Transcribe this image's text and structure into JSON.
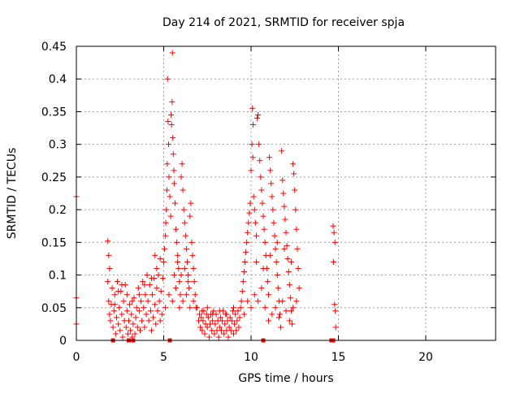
{
  "chart_data": {
    "type": "scatter",
    "title": "Day 214 of 2021, SRMTID for receiver spja",
    "xlabel": "GPS time / hours",
    "ylabel": "SRMTID / TECUs",
    "xlim": [
      0,
      24
    ],
    "ylim": [
      0,
      0.45
    ],
    "x_ticks": [
      0,
      5,
      10,
      15,
      20
    ],
    "x_tick_labels": [
      "0",
      "5",
      "10",
      "15",
      "20"
    ],
    "y_ticks": [
      0,
      0.05,
      0.1,
      0.15,
      0.2,
      0.25,
      0.3,
      0.35,
      0.4,
      0.45
    ],
    "y_tick_labels": [
      "0",
      "0.05",
      "0.1",
      "0.15",
      "0.2",
      "0.25",
      "0.3",
      "0.35",
      "0.4",
      "0.45"
    ],
    "grid": true,
    "legend": "none",
    "marker": "plus",
    "series": [
      {
        "color": "#ff0000",
        "points": [
          [
            0.0,
            0.22
          ],
          [
            0.0,
            0.065
          ],
          [
            0.0,
            0.025
          ],
          [
            1.8,
            0.152
          ],
          [
            1.85,
            0.13
          ],
          [
            1.9,
            0.11
          ],
          [
            1.8,
            0.09
          ],
          [
            1.85,
            0.06
          ],
          [
            1.9,
            0.04
          ],
          [
            1.95,
            0.03
          ],
          [
            2.0,
            0.055
          ],
          [
            2.05,
            0.08
          ],
          [
            2.1,
            0.02
          ],
          [
            2.15,
            0.045
          ],
          [
            2.2,
            0.07
          ],
          [
            2.25,
            0.01
          ],
          [
            2.3,
            0.035
          ],
          [
            2.35,
            0.09
          ],
          [
            2.4,
            0.025
          ],
          [
            2.45,
            0.05
          ],
          [
            2.5,
            0.015
          ],
          [
            2.55,
            0.075
          ],
          [
            2.6,
            0.04
          ],
          [
            2.65,
            0.005
          ],
          [
            2.7,
            0.06
          ],
          [
            2.75,
            0.03
          ],
          [
            2.8,
            0.085
          ],
          [
            2.85,
            0.02
          ],
          [
            2.9,
            0.045
          ],
          [
            2.95,
            0.01
          ],
          [
            3.0,
            0.03
          ],
          [
            3.05,
            0.055
          ],
          [
            3.1,
            0.015
          ],
          [
            3.15,
            0.04
          ],
          [
            3.2,
            0.005
          ],
          [
            3.25,
            0.025
          ],
          [
            3.3,
            0.065
          ],
          [
            3.35,
            0.01
          ],
          [
            3.4,
            0.035
          ],
          [
            3.45,
            0.05
          ],
          [
            3.5,
            0.02
          ],
          [
            3.55,
            0.08
          ],
          [
            3.6,
            0.045
          ],
          [
            3.65,
            0.015
          ],
          [
            3.7,
            0.06
          ],
          [
            3.75,
            0.03
          ],
          [
            3.8,
            0.09
          ],
          [
            3.85,
            0.05
          ],
          [
            3.9,
            0.02
          ],
          [
            3.95,
            0.07
          ],
          [
            4.0,
            0.04
          ],
          [
            4.05,
            0.1
          ],
          [
            4.1,
            0.06
          ],
          [
            4.15,
            0.03
          ],
          [
            4.2,
            0.085
          ],
          [
            4.25,
            0.045
          ],
          [
            4.3,
            0.015
          ],
          [
            4.35,
            0.07
          ],
          [
            4.4,
            0.035
          ],
          [
            4.45,
            0.095
          ],
          [
            4.5,
            0.055
          ],
          [
            4.55,
            0.025
          ],
          [
            4.6,
            0.08
          ],
          [
            4.65,
            0.045
          ],
          [
            4.7,
            0.1
          ],
          [
            4.75,
            0.06
          ],
          [
            4.8,
            0.03
          ],
          [
            4.85,
            0.075
          ],
          [
            4.9,
            0.04
          ],
          [
            2.2,
            0.055
          ],
          [
            2.4,
            0.075
          ],
          [
            2.6,
            0.085
          ],
          [
            2.9,
            0.07
          ],
          [
            3.2,
            0.06
          ],
          [
            3.6,
            0.07
          ],
          [
            3.9,
            0.085
          ],
          [
            4.3,
            0.095
          ],
          [
            4.6,
            0.11
          ],
          [
            4.8,
            0.125
          ],
          [
            4.5,
            0.13
          ],
          [
            4.95,
            0.095
          ],
          [
            5.0,
            0.12
          ],
          [
            5.05,
            0.14
          ],
          [
            5.1,
            0.16
          ],
          [
            5.12,
            0.18
          ],
          [
            5.15,
            0.2
          ],
          [
            5.18,
            0.23
          ],
          [
            5.2,
            0.27
          ],
          [
            5.22,
            0.4
          ],
          [
            5.25,
            0.335
          ],
          [
            5.28,
            0.3
          ],
          [
            5.3,
            0.25
          ],
          [
            5.35,
            0.22
          ],
          [
            5.4,
            0.19
          ],
          [
            5.42,
            0.345
          ],
          [
            5.45,
            0.33
          ],
          [
            5.48,
            0.365
          ],
          [
            5.5,
            0.44
          ],
          [
            5.52,
            0.31
          ],
          [
            5.55,
            0.285
          ],
          [
            5.58,
            0.26
          ],
          [
            5.6,
            0.24
          ],
          [
            5.65,
            0.21
          ],
          [
            5.7,
            0.17
          ],
          [
            5.75,
            0.15
          ],
          [
            5.8,
            0.13
          ],
          [
            5.85,
            0.11
          ],
          [
            5.9,
            0.09
          ],
          [
            5.95,
            0.07
          ],
          [
            6.0,
            0.25
          ],
          [
            6.05,
            0.27
          ],
          [
            6.1,
            0.23
          ],
          [
            6.15,
            0.2
          ],
          [
            6.2,
            0.18
          ],
          [
            6.25,
            0.16
          ],
          [
            6.3,
            0.14
          ],
          [
            6.35,
            0.12
          ],
          [
            6.4,
            0.1
          ],
          [
            6.45,
            0.08
          ],
          [
            6.5,
            0.19
          ],
          [
            6.55,
            0.21
          ],
          [
            6.6,
            0.15
          ],
          [
            6.65,
            0.13
          ],
          [
            6.7,
            0.11
          ],
          [
            6.75,
            0.09
          ],
          [
            6.8,
            0.07
          ],
          [
            6.85,
            0.05
          ],
          [
            5.1,
            0.05
          ],
          [
            5.3,
            0.07
          ],
          [
            5.5,
            0.06
          ],
          [
            5.7,
            0.08
          ],
          [
            5.9,
            0.05
          ],
          [
            6.1,
            0.06
          ],
          [
            6.3,
            0.07
          ],
          [
            6.5,
            0.05
          ],
          [
            6.7,
            0.06
          ],
          [
            5.6,
            0.1
          ],
          [
            5.8,
            0.12
          ],
          [
            6.0,
            0.1
          ],
          [
            6.2,
            0.11
          ],
          [
            6.4,
            0.09
          ],
          [
            6.9,
            0.05
          ],
          [
            7.0,
            0.03
          ],
          [
            7.05,
            0.04
          ],
          [
            7.1,
            0.02
          ],
          [
            7.15,
            0.035
          ],
          [
            7.2,
            0.015
          ],
          [
            7.25,
            0.03
          ],
          [
            7.3,
            0.045
          ],
          [
            7.35,
            0.01
          ],
          [
            7.4,
            0.025
          ],
          [
            7.45,
            0.04
          ],
          [
            7.5,
            0.02
          ],
          [
            7.55,
            0.035
          ],
          [
            7.6,
            0.005
          ],
          [
            7.65,
            0.025
          ],
          [
            7.7,
            0.04
          ],
          [
            7.75,
            0.015
          ],
          [
            7.8,
            0.03
          ],
          [
            7.85,
            0.045
          ],
          [
            7.9,
            0.01
          ],
          [
            7.95,
            0.025
          ],
          [
            8.0,
            0.04
          ],
          [
            8.05,
            0.015
          ],
          [
            8.1,
            0.03
          ],
          [
            8.15,
            0.005
          ],
          [
            8.2,
            0.02
          ],
          [
            8.25,
            0.035
          ],
          [
            8.3,
            0.015
          ],
          [
            8.35,
            0.03
          ],
          [
            8.4,
            0.045
          ],
          [
            8.45,
            0.01
          ],
          [
            8.5,
            0.025
          ],
          [
            8.55,
            0.04
          ],
          [
            8.6,
            0.015
          ],
          [
            8.65,
            0.03
          ],
          [
            8.7,
            0.005
          ],
          [
            8.75,
            0.02
          ],
          [
            8.8,
            0.035
          ],
          [
            8.85,
            0.015
          ],
          [
            8.9,
            0.03
          ],
          [
            8.95,
            0.045
          ],
          [
            9.0,
            0.01
          ],
          [
            9.05,
            0.025
          ],
          [
            9.1,
            0.04
          ],
          [
            9.15,
            0.015
          ],
          [
            9.2,
            0.03
          ],
          [
            9.25,
            0.045
          ],
          [
            9.3,
            0.02
          ],
          [
            9.35,
            0.035
          ],
          [
            9.4,
            0.05
          ],
          [
            7.2,
            0.045
          ],
          [
            7.5,
            0.05
          ],
          [
            7.8,
            0.04
          ],
          [
            8.2,
            0.045
          ],
          [
            8.6,
            0.04
          ],
          [
            9.0,
            0.05
          ],
          [
            9.45,
            0.06
          ],
          [
            9.5,
            0.075
          ],
          [
            9.55,
            0.09
          ],
          [
            9.6,
            0.105
          ],
          [
            9.65,
            0.12
          ],
          [
            9.7,
            0.135
          ],
          [
            9.75,
            0.15
          ],
          [
            9.8,
            0.165
          ],
          [
            9.85,
            0.18
          ],
          [
            9.9,
            0.195
          ],
          [
            9.95,
            0.21
          ],
          [
            10.0,
            0.26
          ],
          [
            10.05,
            0.3
          ],
          [
            10.08,
            0.355
          ],
          [
            10.1,
            0.28
          ],
          [
            10.12,
            0.33
          ],
          [
            10.15,
            0.22
          ],
          [
            10.2,
            0.2
          ],
          [
            10.25,
            0.18
          ],
          [
            10.3,
            0.16
          ],
          [
            10.35,
            0.34
          ],
          [
            10.4,
            0.345
          ],
          [
            10.45,
            0.3
          ],
          [
            10.5,
            0.275
          ],
          [
            10.55,
            0.25
          ],
          [
            10.6,
            0.23
          ],
          [
            10.65,
            0.21
          ],
          [
            10.7,
            0.19
          ],
          [
            10.75,
            0.17
          ],
          [
            10.8,
            0.15
          ],
          [
            10.85,
            0.13
          ],
          [
            10.9,
            0.11
          ],
          [
            10.95,
            0.09
          ],
          [
            11.0,
            0.07
          ],
          [
            11.05,
            0.28
          ],
          [
            11.1,
            0.26
          ],
          [
            11.15,
            0.24
          ],
          [
            11.2,
            0.22
          ],
          [
            11.25,
            0.2
          ],
          [
            11.3,
            0.18
          ],
          [
            11.35,
            0.16
          ],
          [
            11.4,
            0.14
          ],
          [
            11.45,
            0.12
          ],
          [
            11.5,
            0.1
          ],
          [
            11.55,
            0.08
          ],
          [
            11.6,
            0.06
          ],
          [
            11.65,
            0.04
          ],
          [
            11.7,
            0.02
          ],
          [
            11.75,
            0.29
          ],
          [
            11.8,
            0.245
          ],
          [
            11.85,
            0.225
          ],
          [
            11.9,
            0.205
          ],
          [
            11.95,
            0.185
          ],
          [
            12.0,
            0.165
          ],
          [
            12.05,
            0.145
          ],
          [
            12.1,
            0.125
          ],
          [
            12.15,
            0.105
          ],
          [
            12.2,
            0.085
          ],
          [
            12.25,
            0.065
          ],
          [
            12.3,
            0.045
          ],
          [
            12.35,
            0.025
          ],
          [
            12.4,
            0.27
          ],
          [
            12.45,
            0.255
          ],
          [
            12.5,
            0.23
          ],
          [
            12.55,
            0.2
          ],
          [
            12.6,
            0.17
          ],
          [
            12.65,
            0.14
          ],
          [
            12.7,
            0.11
          ],
          [
            12.75,
            0.08
          ],
          [
            9.6,
            0.04
          ],
          [
            9.8,
            0.06
          ],
          [
            10.0,
            0.05
          ],
          [
            10.2,
            0.07
          ],
          [
            10.4,
            0.06
          ],
          [
            10.6,
            0.08
          ],
          [
            10.8,
            0.05
          ],
          [
            11.0,
            0.03
          ],
          [
            11.2,
            0.04
          ],
          [
            11.4,
            0.05
          ],
          [
            11.6,
            0.035
          ],
          [
            11.8,
            0.06
          ],
          [
            12.0,
            0.045
          ],
          [
            12.2,
            0.03
          ],
          [
            12.4,
            0.05
          ],
          [
            12.6,
            0.06
          ],
          [
            10.3,
            0.12
          ],
          [
            10.7,
            0.11
          ],
          [
            11.1,
            0.13
          ],
          [
            11.5,
            0.15
          ],
          [
            11.9,
            0.14
          ],
          [
            12.3,
            0.12
          ],
          [
            14.7,
            0.175
          ],
          [
            14.75,
            0.165
          ],
          [
            14.8,
            0.15
          ],
          [
            14.72,
            0.12
          ],
          [
            14.78,
            0.055
          ],
          [
            14.82,
            0.045
          ],
          [
            14.85,
            0.02
          ]
        ]
      }
    ],
    "baseline_markers": [
      2.1,
      3.0,
      3.25,
      5.35,
      10.7,
      14.6,
      14.7
    ]
  }
}
